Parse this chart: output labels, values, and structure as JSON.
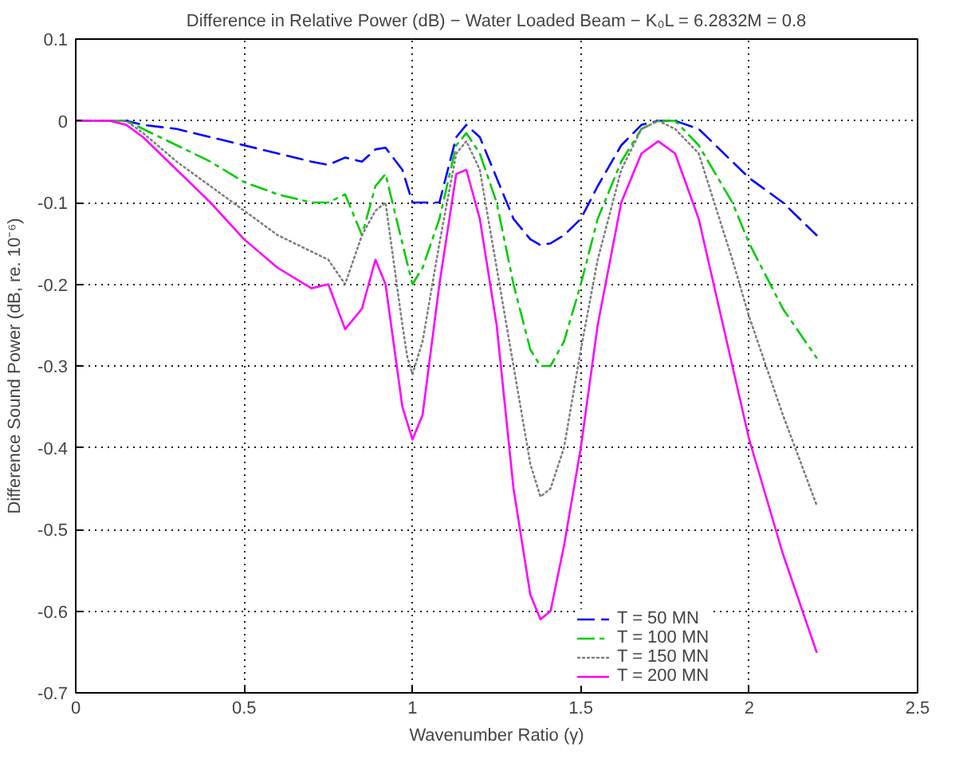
{
  "chart_data": {
    "type": "line",
    "title": "Difference in Relative Power (dB) − Water Loaded Beam − K₀L = 6.2832M = 0.8",
    "xlabel": "Wavenumber Ratio (γ)",
    "ylabel": "Difference Sound Power (dB, re. 10⁻⁶)",
    "xlim": [
      0,
      2.5
    ],
    "ylim": [
      -0.7,
      0.1
    ],
    "xticks": [
      0,
      0.5,
      1,
      1.5,
      2,
      2.5
    ],
    "yticks": [
      -0.7,
      -0.6,
      -0.5,
      -0.4,
      -0.3,
      -0.2,
      -0.1,
      0,
      0.1
    ],
    "grid": true,
    "legend": "bottom right",
    "x": [
      0,
      0.1,
      0.15,
      0.2,
      0.3,
      0.4,
      0.5,
      0.6,
      0.7,
      0.75,
      0.8,
      0.85,
      0.89,
      0.92,
      0.97,
      1.0,
      1.03,
      1.08,
      1.13,
      1.16,
      1.2,
      1.25,
      1.3,
      1.35,
      1.38,
      1.41,
      1.45,
      1.5,
      1.55,
      1.62,
      1.68,
      1.73,
      1.78,
      1.85,
      1.95,
      2.0,
      2.1,
      2.2
    ],
    "series": [
      {
        "name": "T = 50 MN",
        "color": "#0000ff",
        "line_style": "dashed",
        "values": [
          0,
          0,
          0,
          -0.005,
          -0.01,
          -0.02,
          -0.03,
          -0.04,
          -0.05,
          -0.054,
          -0.045,
          -0.05,
          -0.035,
          -0.033,
          -0.06,
          -0.1,
          -0.1,
          -0.1,
          -0.02,
          -0.005,
          -0.02,
          -0.07,
          -0.12,
          -0.145,
          -0.152,
          -0.15,
          -0.14,
          -0.12,
          -0.08,
          -0.03,
          -0.005,
          0.0,
          0.0,
          -0.01,
          -0.05,
          -0.07,
          -0.1,
          -0.14
        ]
      },
      {
        "name": "T = 100 MN",
        "color": "#00cc00",
        "line_style": "dashdot",
        "values": [
          0,
          0,
          0,
          -0.01,
          -0.03,
          -0.05,
          -0.075,
          -0.09,
          -0.1,
          -0.1,
          -0.09,
          -0.14,
          -0.08,
          -0.065,
          -0.15,
          -0.2,
          -0.18,
          -0.12,
          -0.03,
          -0.015,
          -0.04,
          -0.1,
          -0.2,
          -0.28,
          -0.3,
          -0.3,
          -0.27,
          -0.2,
          -0.12,
          -0.05,
          -0.01,
          0.0,
          0.0,
          -0.03,
          -0.1,
          -0.15,
          -0.23,
          -0.29
        ]
      },
      {
        "name": "T = 150 MN",
        "color": "#808080",
        "line_style": "dotted",
        "x": [
          0,
          0.1,
          0.15,
          0.2,
          0.3,
          0.4,
          0.5,
          0.6,
          0.7,
          0.75,
          0.8,
          0.85,
          0.89,
          0.92,
          0.97,
          0.985,
          1.0,
          1.015,
          1.03,
          1.08,
          1.13,
          1.16,
          1.2,
          1.25,
          1.3,
          1.35,
          1.38,
          1.41,
          1.45,
          1.5,
          1.55,
          1.62,
          1.68,
          1.73,
          1.78,
          1.85,
          1.95,
          2.0,
          2.1,
          2.2
        ],
        "values": [
          0,
          0,
          0,
          -0.015,
          -0.05,
          -0.08,
          -0.11,
          -0.14,
          -0.16,
          -0.17,
          -0.2,
          -0.14,
          -0.11,
          -0.1,
          -0.25,
          -0.29,
          -0.31,
          -0.29,
          -0.27,
          -0.15,
          -0.04,
          -0.025,
          -0.06,
          -0.18,
          -0.3,
          -0.42,
          -0.46,
          -0.45,
          -0.4,
          -0.28,
          -0.17,
          -0.06,
          -0.01,
          0.0,
          -0.01,
          -0.04,
          -0.17,
          -0.24,
          -0.36,
          -0.47
        ]
      },
      {
        "name": "T = 200 MN",
        "color": "#ff00ff",
        "line_style": "solid",
        "values": [
          0,
          0,
          -0.005,
          -0.02,
          -0.06,
          -0.1,
          -0.145,
          -0.18,
          -0.205,
          -0.2,
          -0.255,
          -0.23,
          -0.17,
          -0.2,
          -0.35,
          -0.39,
          -0.36,
          -0.2,
          -0.065,
          -0.06,
          -0.12,
          -0.25,
          -0.45,
          -0.58,
          -0.61,
          -0.6,
          -0.52,
          -0.4,
          -0.25,
          -0.1,
          -0.04,
          -0.025,
          -0.04,
          -0.12,
          -0.3,
          -0.39,
          -0.53,
          -0.65
        ]
      }
    ]
  }
}
